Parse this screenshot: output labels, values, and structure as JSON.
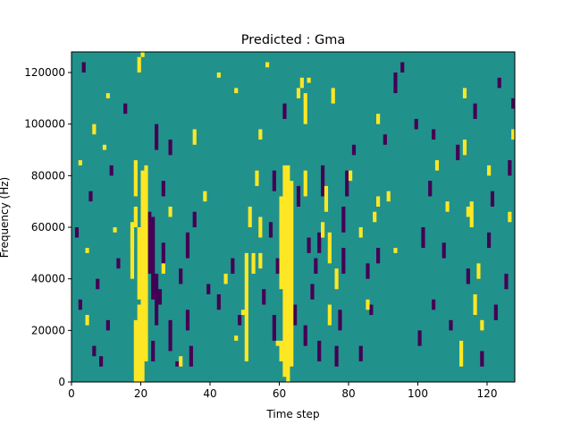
{
  "chart_data": {
    "type": "heatmap",
    "title": "Predicted : Gma",
    "xlabel": "Time step",
    "ylabel": "Frequency (Hz)",
    "xlim": [
      0,
      128
    ],
    "ylim": [
      0,
      128000
    ],
    "x_ticks": [
      0,
      20,
      40,
      60,
      80,
      100,
      120
    ],
    "y_ticks": [
      0,
      20000,
      40000,
      60000,
      80000,
      100000,
      120000
    ],
    "x_tick_labels": [
      "0",
      "20",
      "40",
      "60",
      "80",
      "100",
      "120"
    ],
    "y_tick_labels": [
      "0",
      "20000",
      "40000",
      "60000",
      "80000",
      "100000",
      "120000"
    ],
    "grid": false,
    "colormap": "viridis",
    "colors": {
      "background": "#21918c",
      "high": "#fde725",
      "low": "#440154"
    },
    "rows": 64,
    "cols": 128,
    "row_height_hz": 2000,
    "high_cells": [
      [
        18,
        0,
        11
      ],
      [
        19,
        0,
        14
      ],
      [
        20,
        0,
        40
      ],
      [
        21,
        4,
        41
      ],
      [
        19,
        16,
        29
      ],
      [
        17,
        20,
        28
      ],
      [
        17,
        26,
        30
      ],
      [
        18,
        30,
        33
      ],
      [
        18,
        36,
        42
      ],
      [
        19,
        60,
        62
      ],
      [
        20,
        63,
        63
      ],
      [
        61,
        1,
        41
      ],
      [
        62,
        0,
        41
      ],
      [
        63,
        3,
        38
      ],
      [
        60,
        18,
        35
      ],
      [
        60,
        4,
        7
      ],
      [
        59,
        7,
        7
      ],
      [
        47,
        8,
        8
      ],
      [
        49,
        13,
        13
      ],
      [
        50,
        4,
        24
      ],
      [
        51,
        30,
        33
      ],
      [
        52,
        21,
        24
      ],
      [
        54,
        22,
        24
      ],
      [
        54,
        28,
        31
      ],
      [
        53,
        38,
        40
      ],
      [
        54,
        47,
        48
      ],
      [
        56,
        61,
        61
      ],
      [
        65,
        55,
        56
      ],
      [
        66,
        57,
        58
      ],
      [
        67,
        50,
        55
      ],
      [
        67,
        36,
        40
      ],
      [
        68,
        58,
        58
      ],
      [
        72,
        28,
        30
      ],
      [
        73,
        33,
        37
      ],
      [
        74,
        11,
        14
      ],
      [
        74,
        23,
        28
      ],
      [
        75,
        54,
        56
      ],
      [
        76,
        18,
        21
      ],
      [
        80,
        39,
        40
      ],
      [
        83,
        28,
        29
      ],
      [
        85,
        14,
        15
      ],
      [
        87,
        31,
        32
      ],
      [
        88,
        50,
        51
      ],
      [
        88,
        34,
        35
      ],
      [
        91,
        35,
        36
      ],
      [
        93,
        25,
        25
      ],
      [
        105,
        41,
        42
      ],
      [
        108,
        33,
        34
      ],
      [
        112,
        3,
        7
      ],
      [
        113,
        44,
        46
      ],
      [
        113,
        55,
        56
      ],
      [
        114,
        32,
        33
      ],
      [
        115,
        30,
        34
      ],
      [
        116,
        13,
        16
      ],
      [
        117,
        20,
        22
      ],
      [
        118,
        10,
        11
      ],
      [
        120,
        40,
        41
      ],
      [
        126,
        31,
        32
      ],
      [
        127,
        47,
        48
      ],
      [
        2,
        42,
        42
      ],
      [
        4,
        11,
        12
      ],
      [
        6,
        48,
        49
      ],
      [
        26,
        21,
        22
      ],
      [
        28,
        32,
        33
      ],
      [
        31,
        3,
        4
      ],
      [
        35,
        46,
        48
      ],
      [
        38,
        35,
        36
      ],
      [
        42,
        59,
        59
      ],
      [
        44,
        19,
        20
      ],
      [
        47,
        56,
        56
      ],
      [
        10,
        55,
        55
      ],
      [
        4,
        25,
        25
      ],
      [
        12,
        29,
        29
      ],
      [
        9,
        45,
        45
      ]
    ],
    "low_cells": [
      [
        22,
        21,
        32
      ],
      [
        23,
        16,
        31
      ],
      [
        24,
        11,
        20
      ],
      [
        23,
        4,
        7
      ],
      [
        25,
        15,
        17
      ],
      [
        26,
        23,
        26
      ],
      [
        24,
        45,
        49
      ],
      [
        28,
        44,
        46
      ],
      [
        26,
        36,
        38
      ],
      [
        28,
        6,
        11
      ],
      [
        30,
        3,
        3
      ],
      [
        31,
        19,
        21
      ],
      [
        33,
        10,
        13
      ],
      [
        33,
        24,
        28
      ],
      [
        34,
        3,
        6
      ],
      [
        35,
        30,
        32
      ],
      [
        39,
        17,
        18
      ],
      [
        42,
        14,
        16
      ],
      [
        46,
        21,
        23
      ],
      [
        48,
        11,
        12
      ],
      [
        55,
        15,
        17
      ],
      [
        58,
        8,
        12
      ],
      [
        57,
        28,
        30
      ],
      [
        59,
        21,
        23
      ],
      [
        58,
        37,
        40
      ],
      [
        61,
        51,
        53
      ],
      [
        64,
        11,
        14
      ],
      [
        65,
        34,
        37
      ],
      [
        67,
        7,
        10
      ],
      [
        68,
        25,
        27
      ],
      [
        69,
        16,
        18
      ],
      [
        70,
        21,
        23
      ],
      [
        71,
        4,
        7
      ],
      [
        71,
        25,
        28
      ],
      [
        72,
        36,
        41
      ],
      [
        76,
        3,
        6
      ],
      [
        77,
        10,
        13
      ],
      [
        78,
        21,
        25
      ],
      [
        78,
        29,
        33
      ],
      [
        79,
        36,
        40
      ],
      [
        81,
        44,
        45
      ],
      [
        83,
        4,
        6
      ],
      [
        85,
        20,
        22
      ],
      [
        86,
        13,
        14
      ],
      [
        88,
        23,
        25
      ],
      [
        90,
        46,
        47
      ],
      [
        93,
        56,
        59
      ],
      [
        95,
        60,
        61
      ],
      [
        99,
        49,
        50
      ],
      [
        100,
        7,
        9
      ],
      [
        101,
        26,
        29
      ],
      [
        103,
        36,
        38
      ],
      [
        104,
        14,
        15
      ],
      [
        104,
        47,
        48
      ],
      [
        107,
        24,
        26
      ],
      [
        109,
        10,
        11
      ],
      [
        111,
        43,
        45
      ],
      [
        114,
        19,
        21
      ],
      [
        116,
        51,
        53
      ],
      [
        118,
        3,
        5
      ],
      [
        120,
        26,
        28
      ],
      [
        121,
        34,
        36
      ],
      [
        122,
        12,
        14
      ],
      [
        123,
        57,
        58
      ],
      [
        125,
        18,
        20
      ],
      [
        126,
        40,
        42
      ],
      [
        127,
        53,
        54
      ],
      [
        5,
        35,
        36
      ],
      [
        7,
        18,
        19
      ],
      [
        3,
        60,
        61
      ],
      [
        8,
        3,
        4
      ],
      [
        11,
        40,
        41
      ],
      [
        13,
        22,
        23
      ],
      [
        15,
        52,
        53
      ],
      [
        10,
        10,
        11
      ],
      [
        1,
        28,
        29
      ],
      [
        2,
        14,
        15
      ],
      [
        6,
        5,
        6
      ]
    ]
  }
}
